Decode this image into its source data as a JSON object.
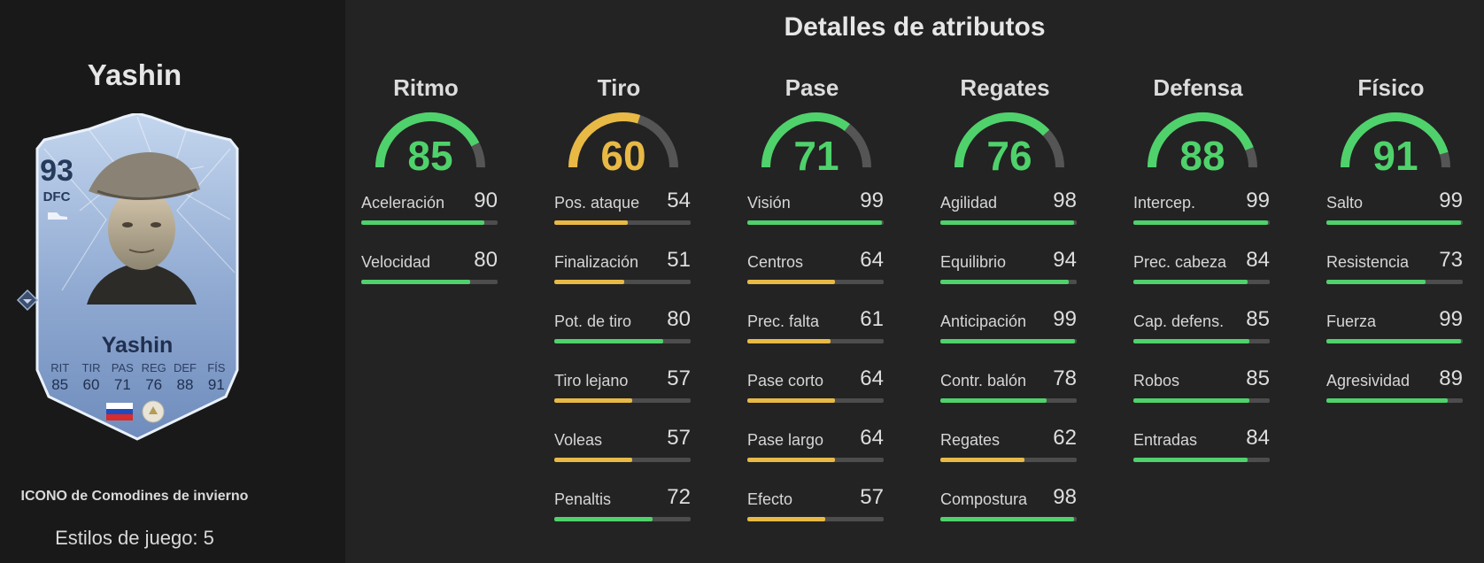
{
  "colors": {
    "green": "#4fd26b",
    "yellow": "#e8b945",
    "track": "#555555"
  },
  "player": {
    "name": "Yashin",
    "rating": "93",
    "position": "DFC",
    "card_subtitle": "ICONO de Comodines de invierno",
    "playstyles": "Estilos de juego: 5",
    "card_stats": [
      {
        "label": "RIT",
        "value": "85"
      },
      {
        "label": "TIR",
        "value": "60"
      },
      {
        "label": "PAS",
        "value": "71"
      },
      {
        "label": "REG",
        "value": "76"
      },
      {
        "label": "DEF",
        "value": "88"
      },
      {
        "label": "FÍS",
        "value": "91"
      }
    ]
  },
  "section_title": "Detalles de atributos",
  "categories": [
    {
      "name": "Ritmo",
      "value": 85,
      "color": "green",
      "attributes": [
        {
          "label": "Aceleración",
          "value": 90,
          "color": "green"
        },
        {
          "label": "Velocidad",
          "value": 80,
          "color": "green"
        }
      ]
    },
    {
      "name": "Tiro",
      "value": 60,
      "color": "yellow",
      "attributes": [
        {
          "label": "Pos. ataque",
          "value": 54,
          "color": "yellow"
        },
        {
          "label": "Finalización",
          "value": 51,
          "color": "yellow"
        },
        {
          "label": "Pot. de tiro",
          "value": 80,
          "color": "green"
        },
        {
          "label": "Tiro lejano",
          "value": 57,
          "color": "yellow"
        },
        {
          "label": "Voleas",
          "value": 57,
          "color": "yellow"
        },
        {
          "label": "Penaltis",
          "value": 72,
          "color": "green"
        }
      ]
    },
    {
      "name": "Pase",
      "value": 71,
      "color": "green",
      "attributes": [
        {
          "label": "Visión",
          "value": 99,
          "color": "green"
        },
        {
          "label": "Centros",
          "value": 64,
          "color": "yellow"
        },
        {
          "label": "Prec. falta",
          "value": 61,
          "color": "yellow"
        },
        {
          "label": "Pase corto",
          "value": 64,
          "color": "yellow"
        },
        {
          "label": "Pase largo",
          "value": 64,
          "color": "yellow"
        },
        {
          "label": "Efecto",
          "value": 57,
          "color": "yellow"
        }
      ]
    },
    {
      "name": "Regates",
      "value": 76,
      "color": "green",
      "attributes": [
        {
          "label": "Agilidad",
          "value": 98,
          "color": "green"
        },
        {
          "label": "Equilibrio",
          "value": 94,
          "color": "green"
        },
        {
          "label": "Anticipación",
          "value": 99,
          "color": "green"
        },
        {
          "label": "Contr. balón",
          "value": 78,
          "color": "green"
        },
        {
          "label": "Regates",
          "value": 62,
          "color": "yellow"
        },
        {
          "label": "Compostura",
          "value": 98,
          "color": "green"
        }
      ]
    },
    {
      "name": "Defensa",
      "value": 88,
      "color": "green",
      "attributes": [
        {
          "label": "Intercep.",
          "value": 99,
          "color": "green"
        },
        {
          "label": "Prec. cabeza",
          "value": 84,
          "color": "green"
        },
        {
          "label": "Cap. defens.",
          "value": 85,
          "color": "green"
        },
        {
          "label": "Robos",
          "value": 85,
          "color": "green"
        },
        {
          "label": "Entradas",
          "value": 84,
          "color": "green"
        }
      ]
    },
    {
      "name": "Físico",
      "value": 91,
      "color": "green",
      "attributes": [
        {
          "label": "Salto",
          "value": 99,
          "color": "green"
        },
        {
          "label": "Resistencia",
          "value": 73,
          "color": "green"
        },
        {
          "label": "Fuerza",
          "value": 99,
          "color": "green"
        },
        {
          "label": "Agresividad",
          "value": 89,
          "color": "green"
        }
      ]
    }
  ]
}
